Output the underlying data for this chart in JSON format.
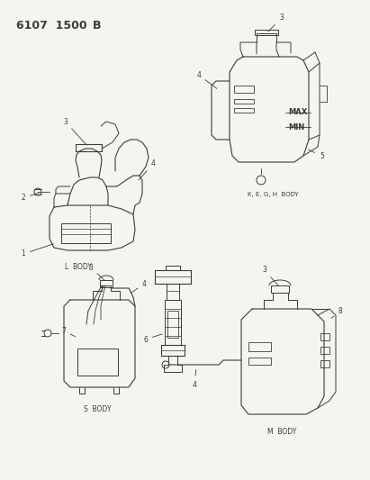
{
  "title": "6107  1500B",
  "bg_color": "#f5f5f0",
  "line_color": "#3a3a3a",
  "fig_width": 4.11,
  "fig_height": 5.33,
  "dpi": 100,
  "labels": {
    "l_body": "L  BODY",
    "s_body": "S  BODY",
    "k_body": "K, E, G, H  BODY",
    "m_body": "M  BODY"
  }
}
